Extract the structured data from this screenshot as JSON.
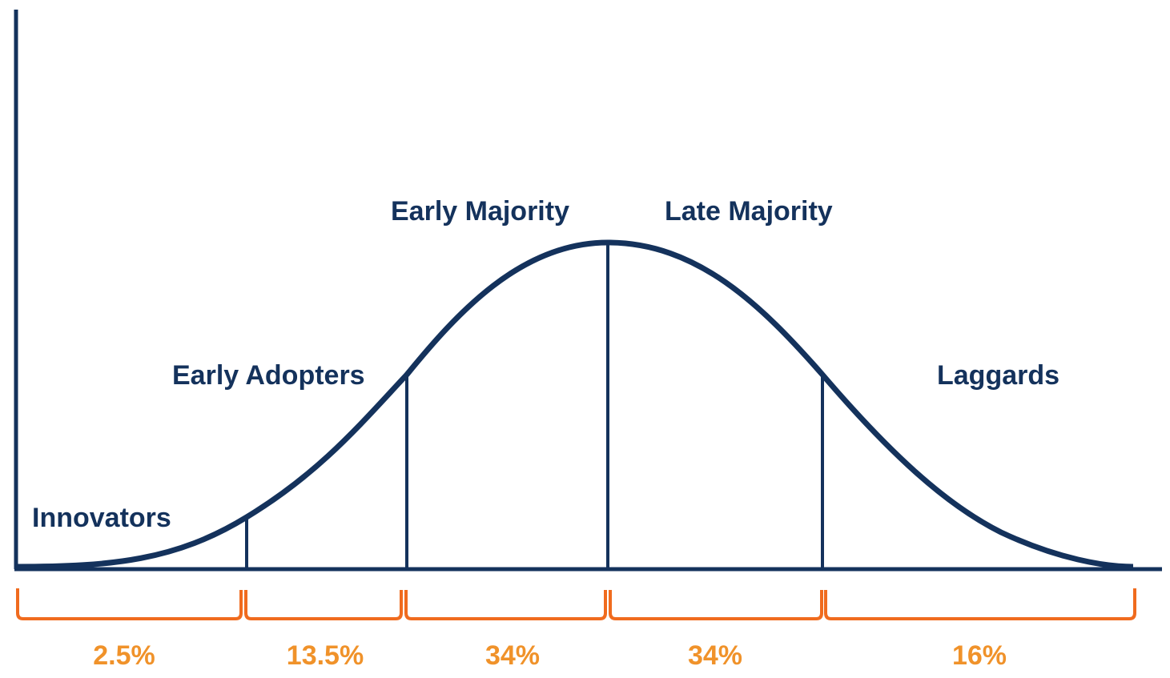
{
  "colors": {
    "curve": "#14325c",
    "labels": "#14325c",
    "brackets": "#f06b1e",
    "percent_text": "#f0922a"
  },
  "segments": [
    {
      "label": "Innovators",
      "percent": "2.5%"
    },
    {
      "label": "Early Adopters",
      "percent": "13.5%"
    },
    {
      "label": "Early Majority",
      "percent": "34%"
    },
    {
      "label": "Late Majority",
      "percent": "34%"
    },
    {
      "label": "Laggards",
      "percent": "16%"
    }
  ]
}
